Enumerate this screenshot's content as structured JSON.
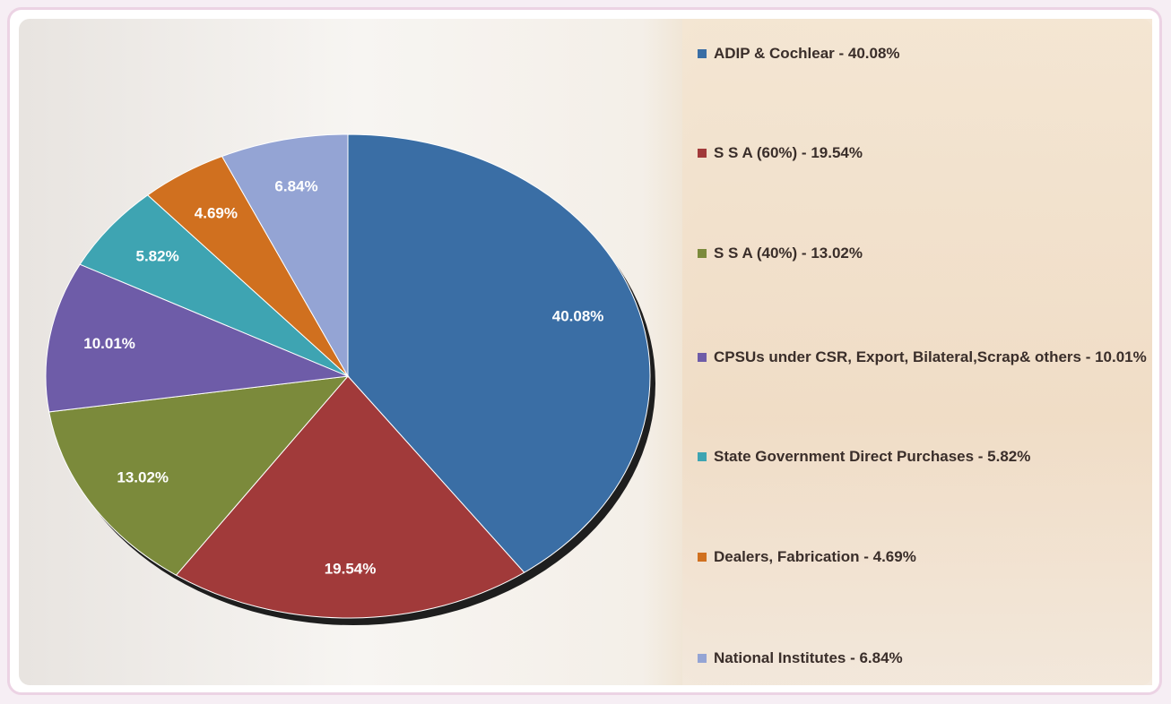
{
  "chart_data": {
    "type": "pie",
    "categories": [
      "ADIP & Cochlear - 40.08%",
      "S S A (60%) - 19.54%",
      "S S A (40%) - 13.02%",
      "CPSUs under CSR, Export, Bilateral,Scrap& others - 10.01%",
      "State Government Direct Purchases - 5.82%",
      "Dealers, Fabrication - 4.69%",
      "National Institutes - 6.84%"
    ],
    "values": [
      40.08,
      19.54,
      13.02,
      10.01,
      5.82,
      4.69,
      6.84
    ],
    "value_labels": [
      "40.08%",
      "19.54%",
      "13.02%",
      "10.01%",
      "5.82%",
      "4.69%",
      "6.84%"
    ],
    "colors": [
      "#3a6ea5",
      "#a13a3a",
      "#7b8a3b",
      "#6e5ca8",
      "#3ea4b2",
      "#d0701f",
      "#94a4d4"
    ]
  }
}
